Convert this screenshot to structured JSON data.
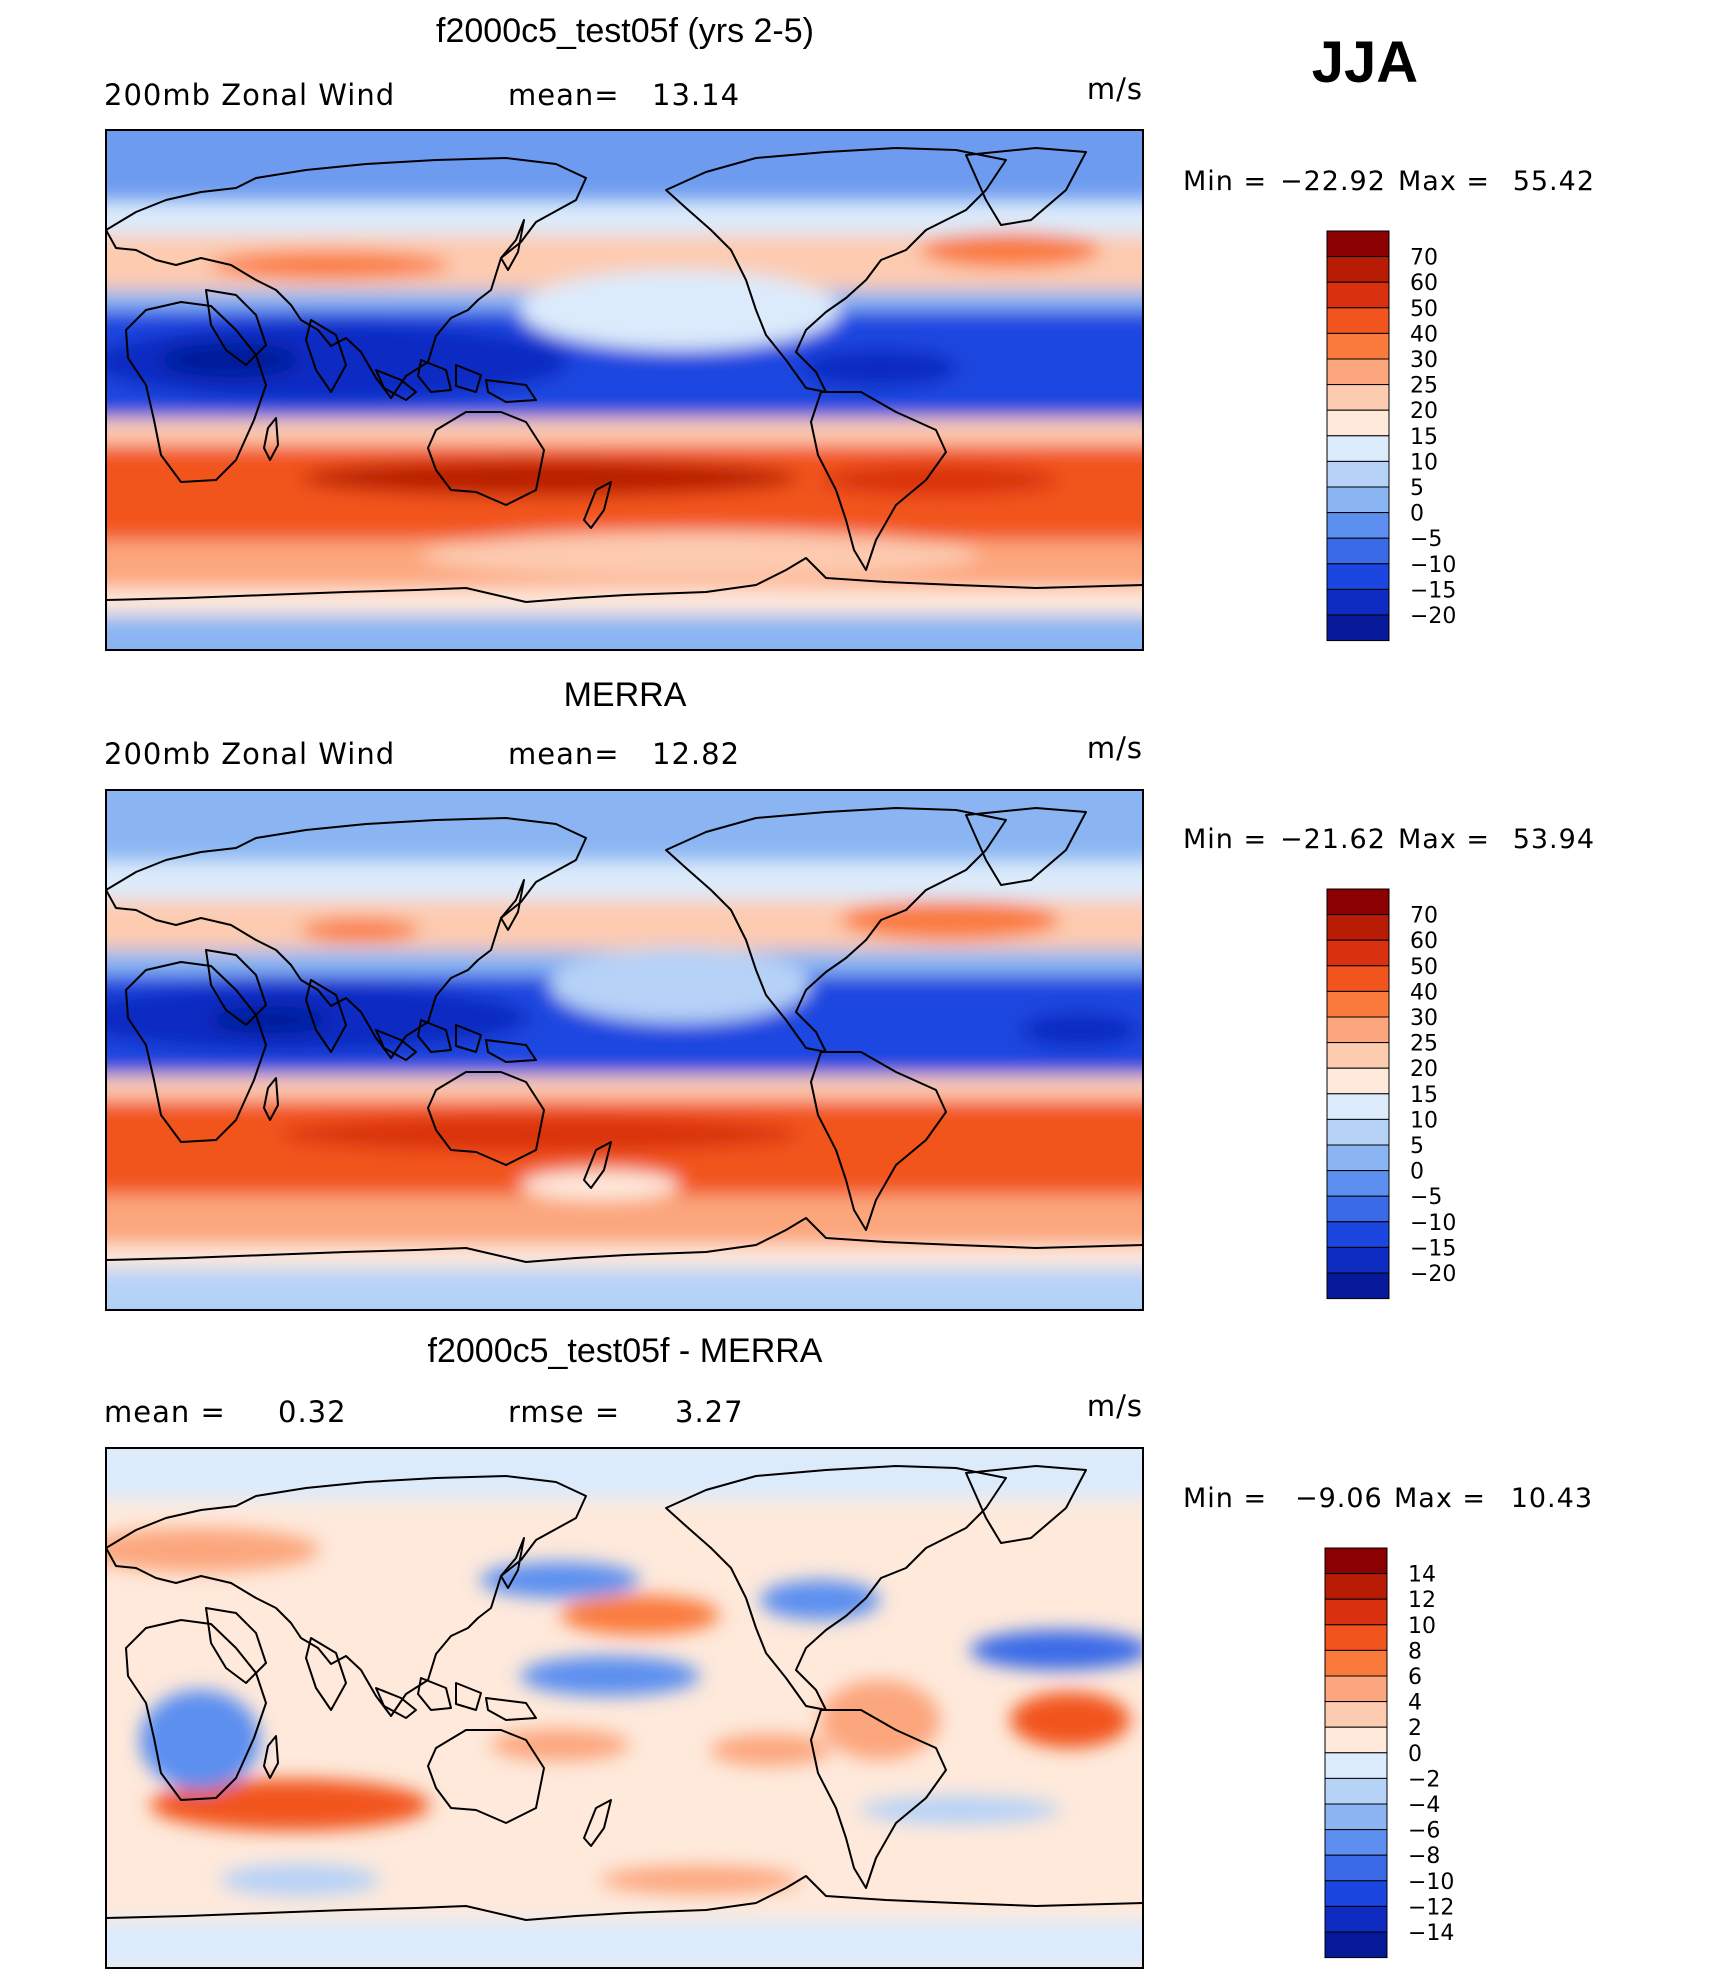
{
  "season": "JJA",
  "panels": [
    {
      "title": "f2000c5_test05f (yrs 2-5)",
      "left_label": "200mb  Zonal  Wind",
      "mid_label": "mean=",
      "mid_value": "13.14",
      "units": "m/s",
      "min_label": "Min  =",
      "min_value": "−22.92",
      "max_label": "Max  =",
      "max_value": "55.42",
      "colorbar": {
        "labels": [
          "70",
          "60",
          "50",
          "40",
          "30",
          "25",
          "20",
          "15",
          "10",
          "5",
          "0",
          "−5",
          "−10",
          "−15",
          "−20"
        ],
        "colors": [
          "#8b0000",
          "#b81c04",
          "#d93010",
          "#f2541e",
          "#fa7a3c",
          "#fca67d",
          "#fdcbb0",
          "#fee9db",
          "#dcebfb",
          "#b6d2f7",
          "#8ab5f2",
          "#5c8ff0",
          "#3a6ae8",
          "#1b46e0",
          "#0e2cc2",
          "#061a99"
        ]
      }
    },
    {
      "title": "MERRA",
      "left_label": "200mb  Zonal  Wind",
      "mid_label": "mean=",
      "mid_value": "12.82",
      "units": "m/s",
      "min_label": "Min  =",
      "min_value": "−21.62",
      "max_label": "Max  =",
      "max_value": "53.94",
      "colorbar": {
        "labels": [
          "70",
          "60",
          "50",
          "40",
          "30",
          "25",
          "20",
          "15",
          "10",
          "5",
          "0",
          "−5",
          "−10",
          "−15",
          "−20"
        ],
        "colors": [
          "#8b0000",
          "#b81c04",
          "#d93010",
          "#f2541e",
          "#fa7a3c",
          "#fca67d",
          "#fdcbb0",
          "#fee9db",
          "#dcebfb",
          "#b6d2f7",
          "#8ab5f2",
          "#5c8ff0",
          "#3a6ae8",
          "#1b46e0",
          "#0e2cc2",
          "#061a99"
        ]
      }
    },
    {
      "title": "f2000c5_test05f - MERRA",
      "left_label": "mean  =",
      "left_value": "0.32",
      "mid_label": "rmse  =",
      "mid_value": "3.27",
      "units": "m/s",
      "min_label": "Min  =",
      "min_value": "−9.06",
      "max_label": "Max  =",
      "max_value": "10.43",
      "colorbar": {
        "labels": [
          "14",
          "12",
          "10",
          "8",
          "6",
          "4",
          "2",
          "0",
          "−2",
          "−4",
          "−6",
          "−8",
          "−10",
          "−12",
          "−14"
        ],
        "colors": [
          "#8b0000",
          "#b81c04",
          "#d93010",
          "#f2541e",
          "#fa7a3c",
          "#fca67d",
          "#fdcbb0",
          "#fee9db",
          "#dcebfb",
          "#b6d2f7",
          "#8ab5f2",
          "#5c8ff0",
          "#3a6ae8",
          "#1b46e0",
          "#0e2cc2",
          "#061a99"
        ]
      }
    }
  ]
}
